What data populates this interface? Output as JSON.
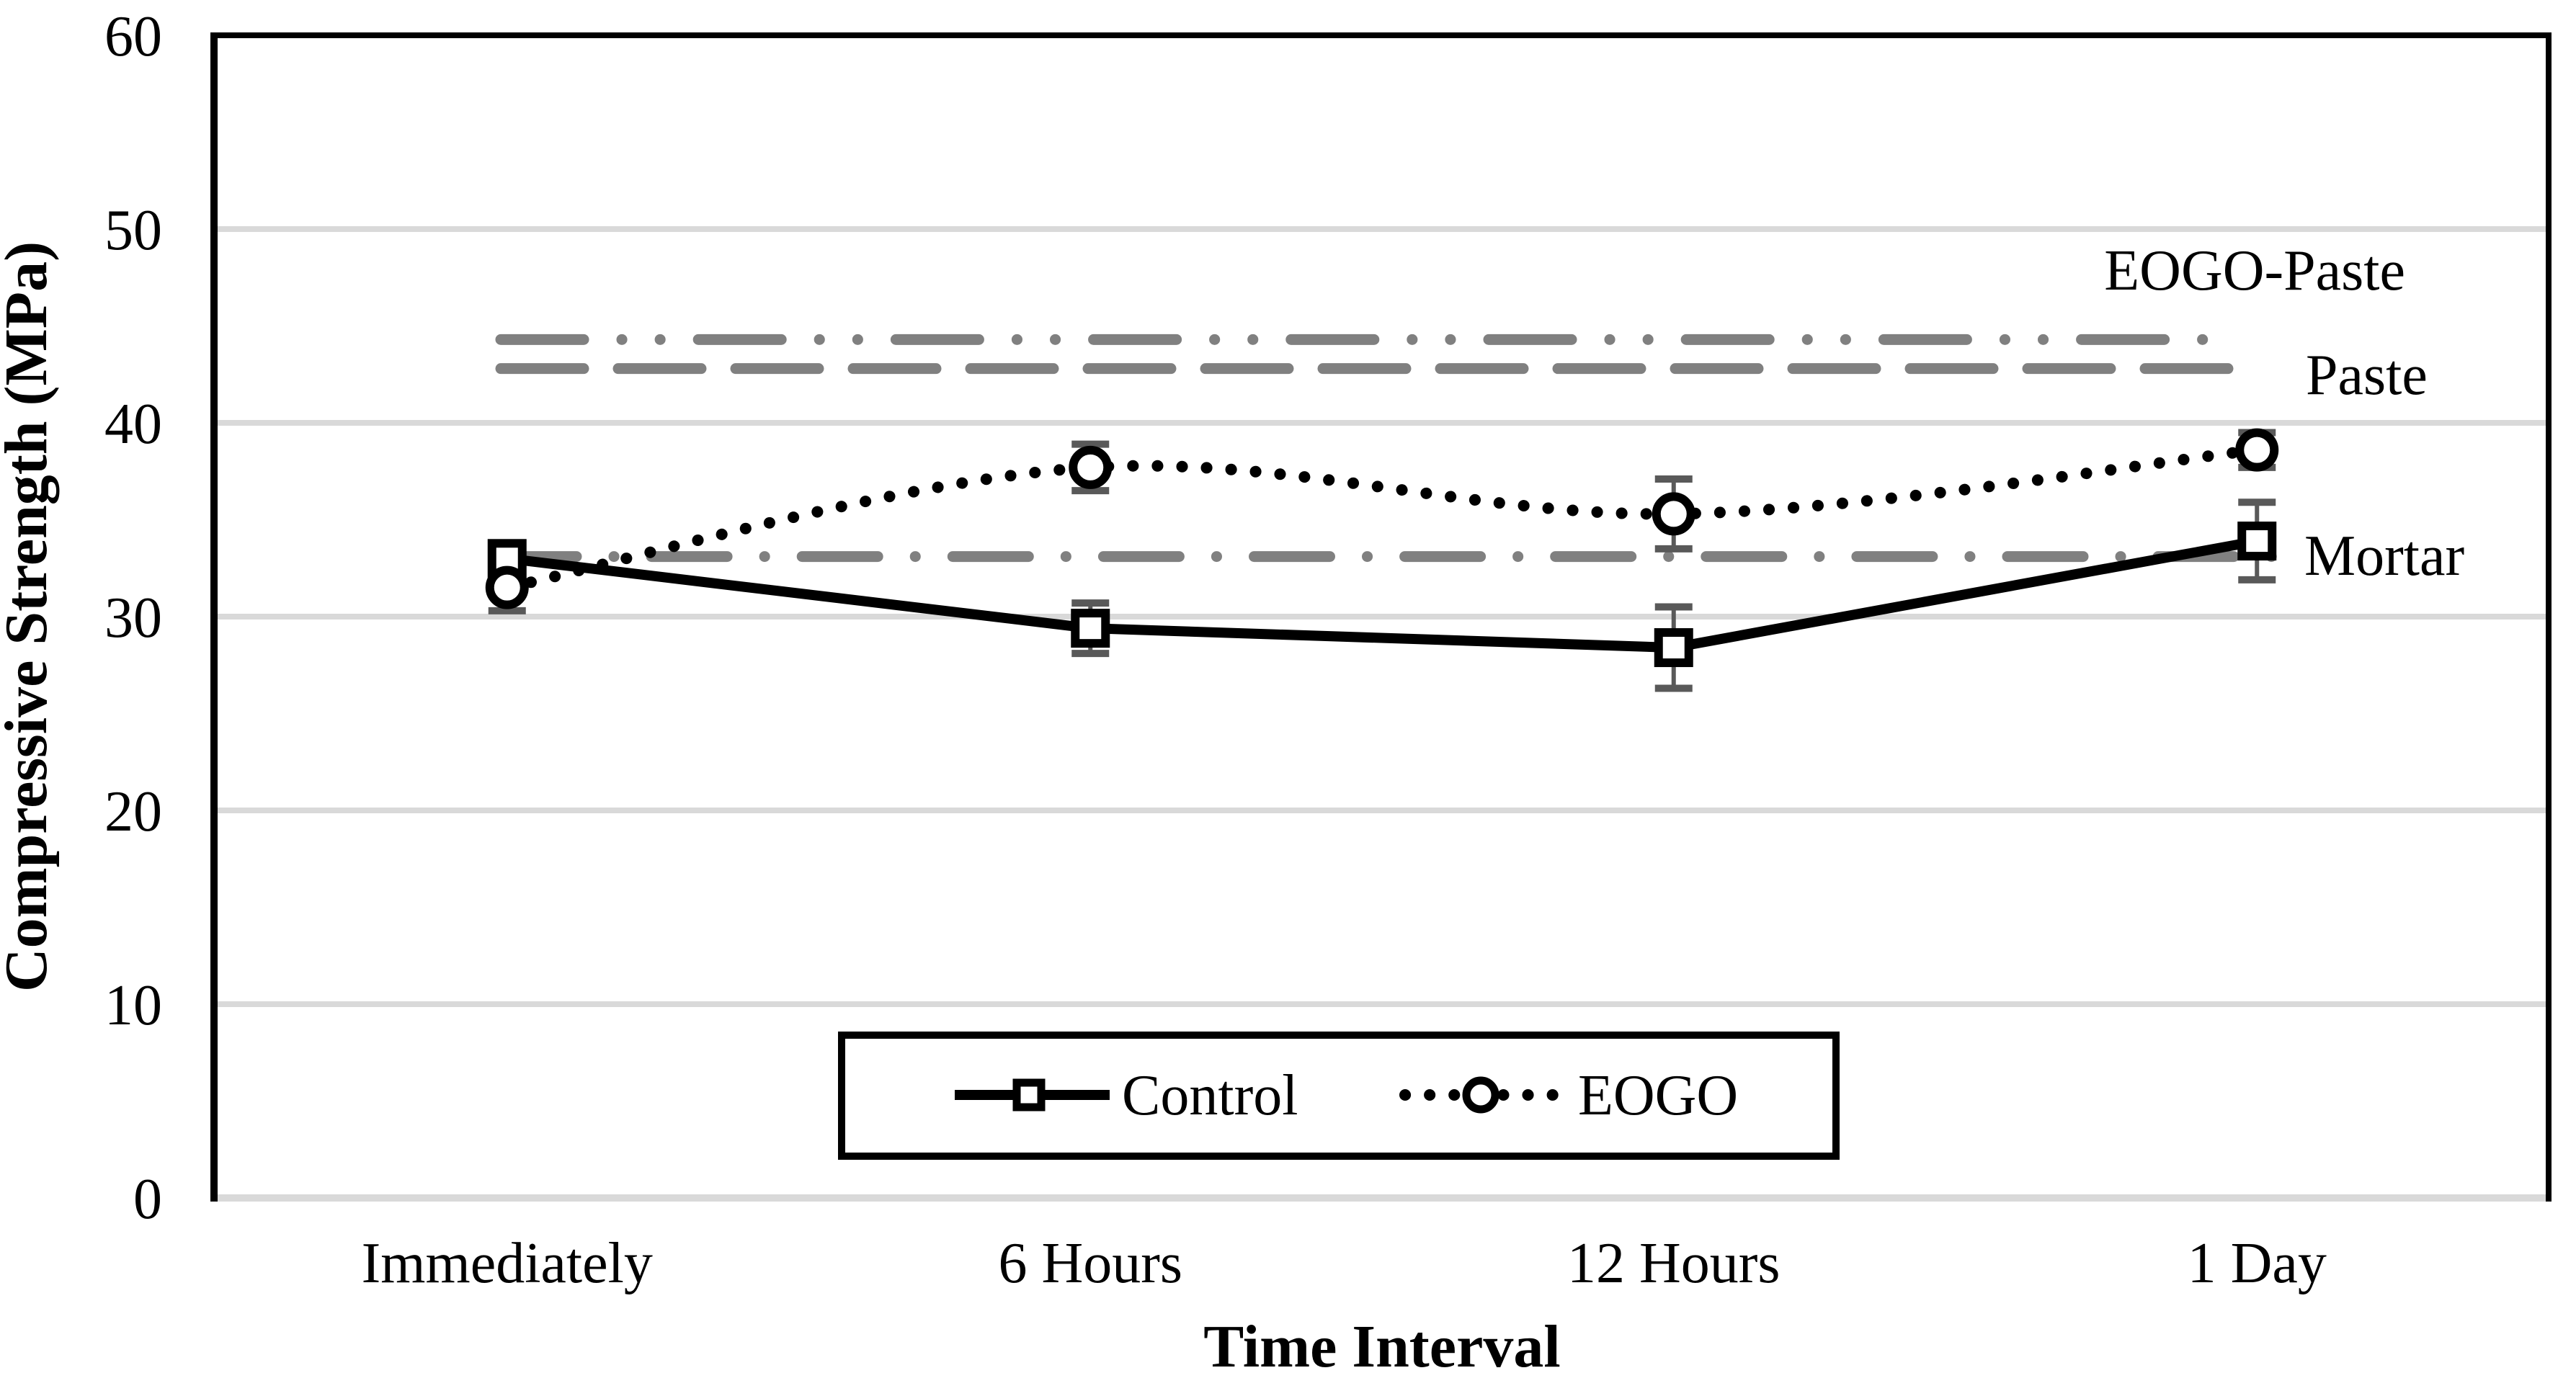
{
  "figure": {
    "background": "#ffffff"
  },
  "chart_data": {
    "type": "line",
    "title": "",
    "xlabel": "Time Interval",
    "ylabel": "Compressive Strength (MPa)",
    "categories": [
      "Immediately",
      "6 Hours",
      "12 Hours",
      "1 Day"
    ],
    "ylim": [
      0,
      60
    ],
    "yticks": [
      0,
      10,
      20,
      30,
      40,
      50,
      60
    ],
    "grid": true,
    "legend_position": "bottom-center",
    "series": [
      {
        "name": "Control",
        "marker": "square",
        "line_style": "solid",
        "smooth": false,
        "color": "#000000",
        "values": [
          33.0,
          29.4,
          28.4,
          33.9
        ],
        "error_bars": [
          0.5,
          1.3,
          2.1,
          2.0
        ]
      },
      {
        "name": "EOGO",
        "marker": "circle",
        "line_style": "dotted",
        "smooth": true,
        "color": "#000000",
        "values": [
          31.5,
          37.7,
          35.3,
          38.6
        ],
        "error_bars": [
          1.2,
          1.2,
          1.8,
          0.9
        ]
      }
    ],
    "reference_lines": [
      {
        "label": "EOGO-Paste",
        "value": 44.3,
        "style": "dash-dot-dot",
        "color": "#808080"
      },
      {
        "label": "Paste",
        "value": 42.8,
        "style": "long-dash",
        "color": "#808080"
      },
      {
        "label": "Mortar",
        "value": 33.1,
        "style": "dash-dot",
        "color": "#808080"
      }
    ],
    "colors": {
      "axis": "#000000",
      "gridline": "#d9d9d9",
      "error_bar": "#595959",
      "marker_fill": "#ffffff",
      "legend_border": "#000000"
    }
  }
}
